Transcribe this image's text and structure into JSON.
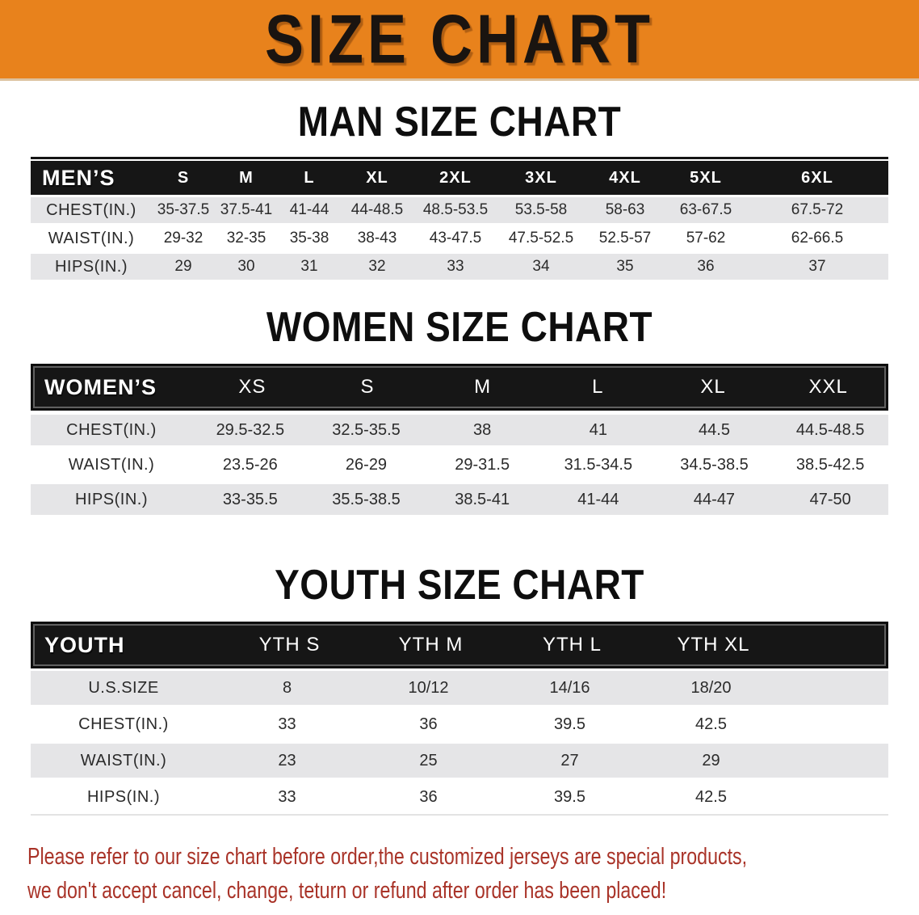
{
  "banner": {
    "title": "SIZE CHART"
  },
  "sections": [
    {
      "heading": "MAN SIZE CHART",
      "table": {
        "header": [
          "MEN’S",
          "S",
          "M",
          "L",
          "XL",
          "2XL",
          "3XL",
          "4XL",
          "5XL",
          "6XL"
        ],
        "rows": [
          {
            "label": "CHEST(IN.)",
            "values": [
              "35-37.5",
              "37.5-41",
              "41-44",
              "44-48.5",
              "48.5-53.5",
              "53.5-58",
              "58-63",
              "63-67.5",
              "67.5-72"
            ]
          },
          {
            "label": "WAIST(IN.)",
            "values": [
              "29-32",
              "32-35",
              "35-38",
              "38-43",
              "43-47.5",
              "47.5-52.5",
              "52.5-57",
              "57-62",
              "62-66.5"
            ]
          },
          {
            "label": "HIPS(IN.)",
            "values": [
              "29",
              "30",
              "31",
              "32",
              "33",
              "34",
              "35",
              "36",
              "37"
            ]
          }
        ]
      }
    },
    {
      "heading": "WOMEN SIZE CHART",
      "table": {
        "header": [
          "WOMEN’S",
          "XS",
          "S",
          "M",
          "L",
          "XL",
          "XXL"
        ],
        "rows": [
          {
            "label": "CHEST(IN.)",
            "values": [
              "29.5-32.5",
              "32.5-35.5",
              "38",
              "41",
              "44.5",
              "44.5-48.5"
            ]
          },
          {
            "label": "WAIST(IN.)",
            "values": [
              "23.5-26",
              "26-29",
              "29-31.5",
              "31.5-34.5",
              "34.5-38.5",
              "38.5-42.5"
            ]
          },
          {
            "label": "HIPS(IN.)",
            "values": [
              "33-35.5",
              "35.5-38.5",
              "38.5-41",
              "41-44",
              "44-47",
              "47-50"
            ]
          }
        ]
      }
    },
    {
      "heading": "YOUTH SIZE CHART",
      "table": {
        "header": [
          "YOUTH",
          "YTH S",
          "YTH M",
          "YTH L",
          "YTH XL"
        ],
        "rows": [
          {
            "label": "U.S.SIZE",
            "values": [
              "8",
              "10/12",
              "14/16",
              "18/20"
            ]
          },
          {
            "label": "CHEST(IN.)",
            "values": [
              "33",
              "36",
              "39.5",
              "42.5"
            ]
          },
          {
            "label": "WAIST(IN.)",
            "values": [
              "23",
              "25",
              "27",
              "29"
            ]
          },
          {
            "label": "HIPS(IN.)",
            "values": [
              "33",
              "36",
              "39.5",
              "42.5"
            ]
          }
        ]
      }
    }
  ],
  "footer": {
    "line1": "Please refer to our size chart before order,the customized jerseys are special products,",
    "line2": "we don't accept cancel, change, teturn or refund after order has been placed!"
  },
  "colors": {
    "banner-bg": "#E8821C",
    "banner-text": "#1A1410",
    "header-bg": "#161616",
    "header-text": "#FFFFFF",
    "stripe": "#E5E5E7",
    "cell-text": "#2B2B2B",
    "notice-text": "#A93328"
  }
}
